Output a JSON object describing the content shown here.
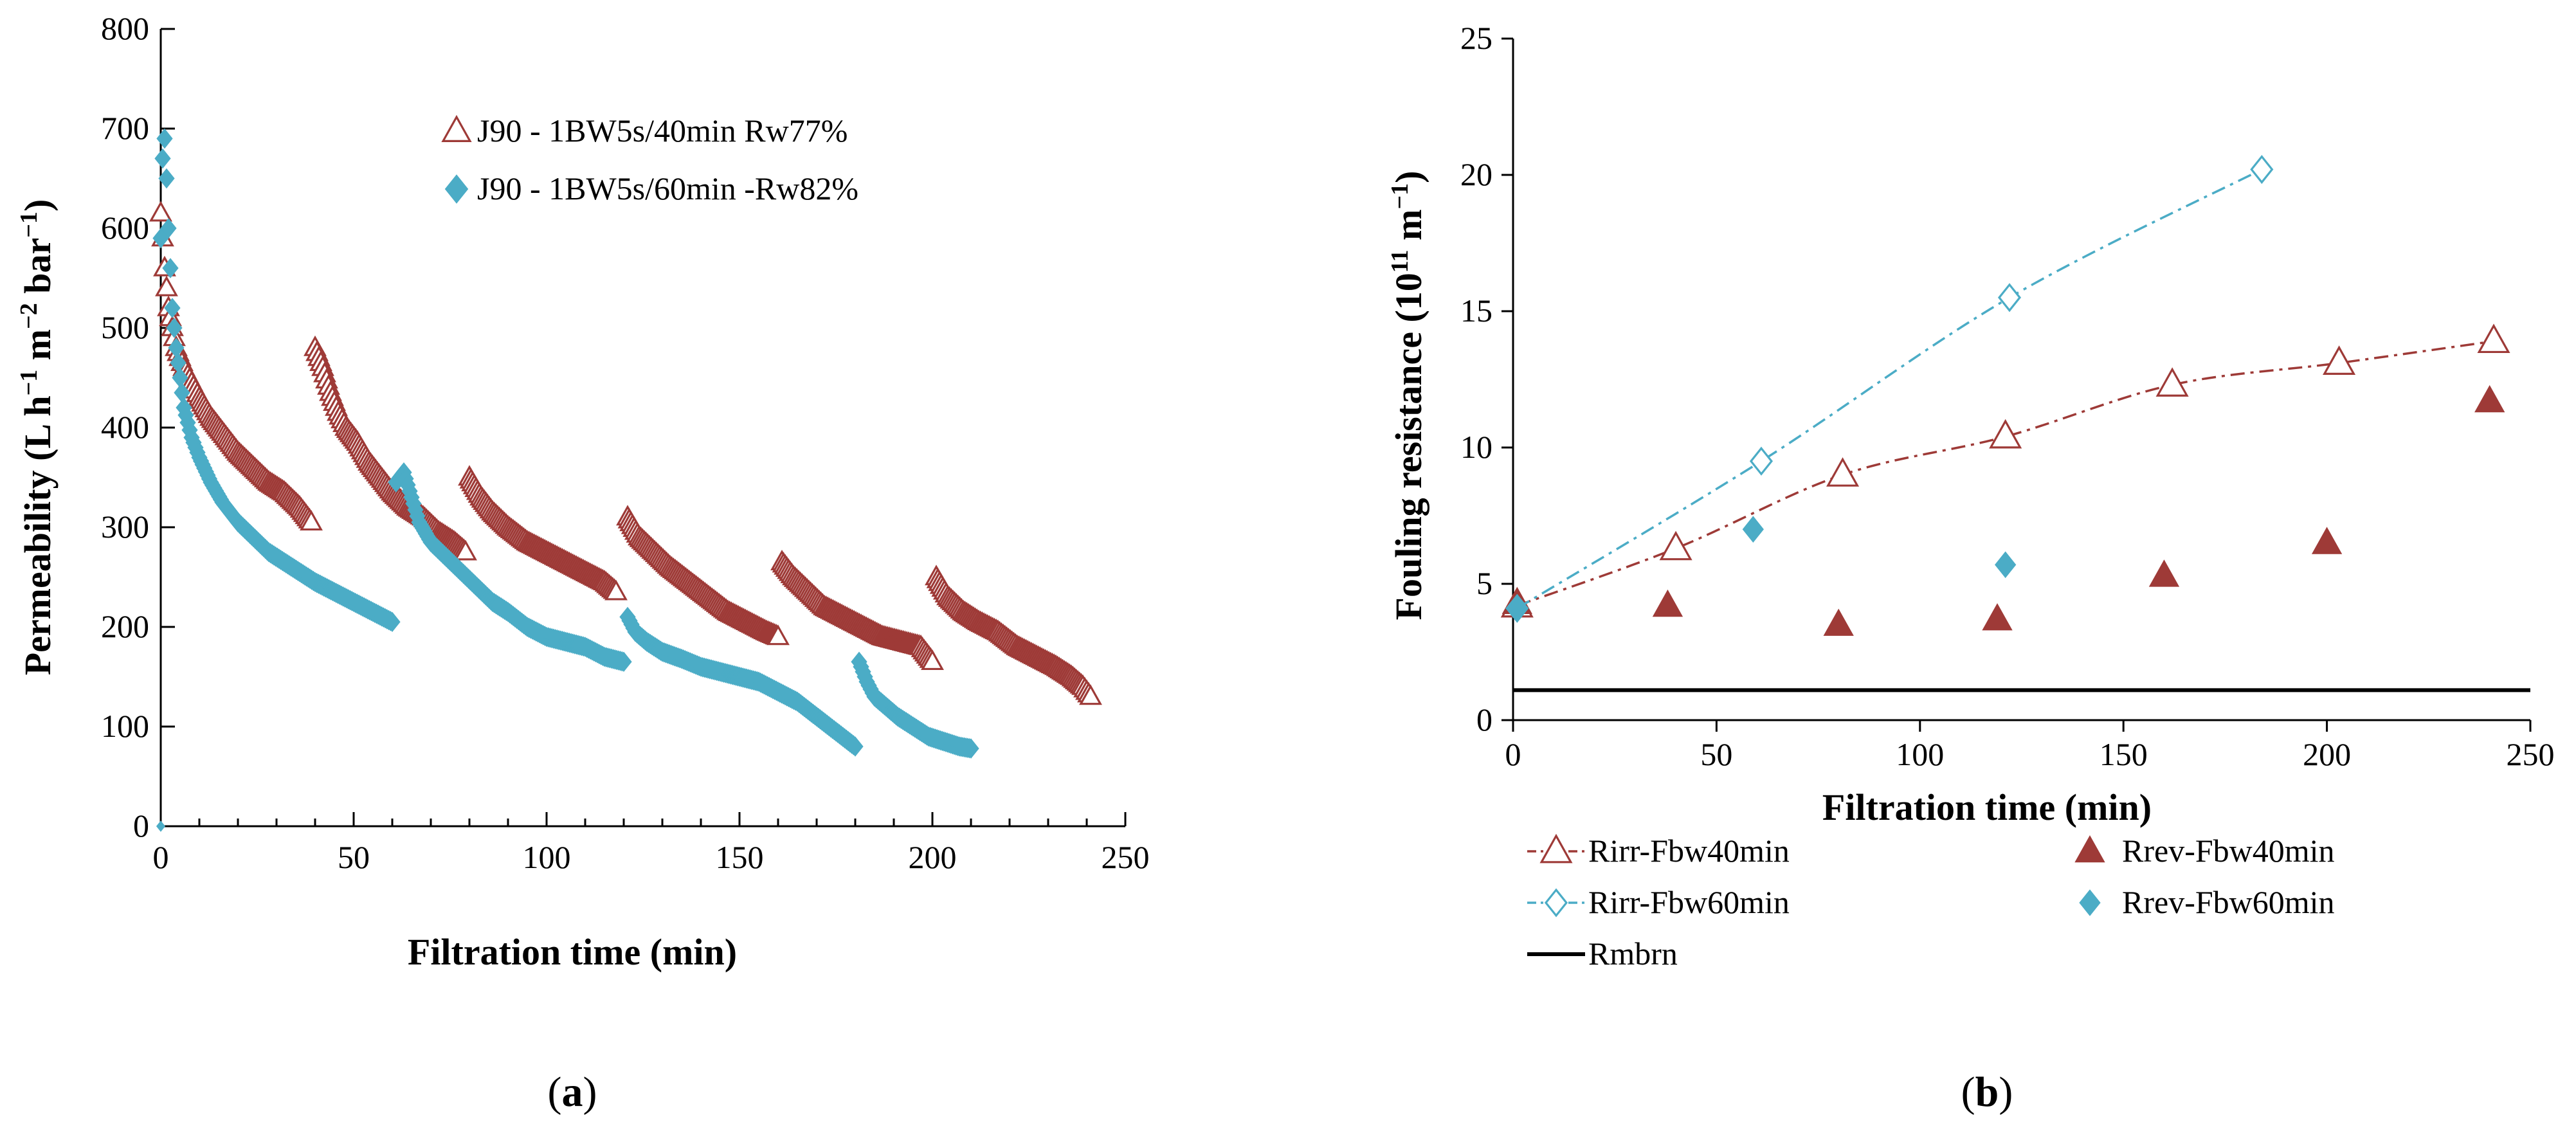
{
  "chart_data": [
    {
      "type": "scatter",
      "panel_label": "a",
      "xlabel": "Filtration time (min)",
      "ylabel_parts": [
        "Permeability (L h",
        "−1",
        " m",
        "−2",
        " bar",
        "−1",
        ")"
      ],
      "xlim": [
        0,
        250
      ],
      "ylim": [
        0,
        800
      ],
      "xticks": [
        "0",
        "50",
        "100",
        "150",
        "200",
        "250"
      ],
      "yticks": [
        "0",
        "100",
        "200",
        "300",
        "400",
        "500",
        "600",
        "700",
        "800"
      ],
      "legend_position": "top-right",
      "colors": {
        "series1": "#9e3a37",
        "series2": "#4bacc6"
      },
      "series": [
        {
          "name": "J90 - 1BW5s/40min Rw77%",
          "marker": "open-triangle",
          "segments": [
            {
              "t": [
                0,
                0.5,
                1,
                2,
                3,
                4,
                6,
                8,
                10,
                13,
                16,
                20,
                24,
                28,
                32,
                36,
                39
              ],
              "p": [
                615,
                590,
                560,
                520,
                500,
                480,
                460,
                445,
                430,
                410,
                395,
                375,
                360,
                345,
                335,
                320,
                305
              ]
            },
            {
              "t": [
                40,
                42,
                44,
                46,
                48,
                51,
                54,
                57,
                60,
                64,
                68,
                72,
                76,
                79
              ],
              "p": [
                480,
                460,
                435,
                415,
                400,
                385,
                365,
                350,
                335,
                320,
                310,
                295,
                285,
                275
              ]
            },
            {
              "t": [
                80,
                83,
                86,
                90,
                95,
                100,
                105,
                110,
                115,
                118
              ],
              "p": [
                350,
                330,
                315,
                300,
                285,
                275,
                265,
                255,
                245,
                235
              ]
            },
            {
              "t": [
                121,
                124,
                128,
                132,
                137,
                142,
                147,
                152,
                157,
                160
              ],
              "p": [
                310,
                290,
                275,
                260,
                245,
                230,
                215,
                205,
                195,
                190
              ]
            },
            {
              "t": [
                161,
                164,
                168,
                172,
                177,
                182,
                187,
                192,
                197,
                200
              ],
              "p": [
                265,
                250,
                235,
                220,
                210,
                200,
                190,
                185,
                180,
                165
              ]
            },
            {
              "t": [
                201,
                204,
                208,
                212,
                217,
                222,
                227,
                232,
                236,
                239,
                241
              ],
              "p": [
                250,
                230,
                215,
                205,
                195,
                180,
                170,
                160,
                150,
                140,
                130
              ]
            }
          ]
        },
        {
          "name": "J90 - 1BW5s/60min -Rw82%",
          "marker": "filled-diamond",
          "segments": [
            {
              "t": [
                0,
                0.5,
                1,
                1.5,
                2,
                3,
                4,
                5,
                6,
                8,
                10,
                13,
                16,
                20,
                24,
                28,
                32,
                36,
                40,
                45,
                50,
                55,
                60
              ],
              "p": [
                590,
                670,
                690,
                650,
                600,
                520,
                480,
                450,
                420,
                390,
                370,
                345,
                325,
                305,
                290,
                275,
                265,
                255,
                245,
                235,
                225,
                215,
                205
              ]
            },
            {
              "t": [
                61,
                63,
                65,
                67,
                70,
                74,
                78,
                82,
                86,
                90,
                95,
                100,
                105,
                110,
                115,
                120
              ],
              "p": [
                345,
                355,
                330,
                305,
                285,
                270,
                255,
                240,
                225,
                215,
                200,
                190,
                185,
                180,
                170,
                165
              ]
            },
            {
              "t": [
                121,
                123,
                126,
                130,
                135,
                140,
                145,
                150,
                155,
                160,
                165,
                170,
                175,
                180
              ],
              "p": [
                210,
                195,
                185,
                175,
                168,
                160,
                155,
                150,
                145,
                135,
                125,
                110,
                95,
                80
              ]
            },
            {
              "t": [
                181,
                183,
                185,
                188,
                191,
                195,
                199,
                203,
                207,
                210
              ],
              "p": [
                165,
                145,
                130,
                120,
                110,
                100,
                90,
                85,
                80,
                78
              ]
            }
          ]
        }
      ]
    },
    {
      "type": "line",
      "panel_label": "b",
      "xlabel": "Filtration time (min)",
      "ylabel_parts": [
        "Fouling resistance (10",
        "11",
        " m",
        "−1",
        ")"
      ],
      "xlim": [
        0,
        250
      ],
      "ylim": [
        0,
        25
      ],
      "xticks": [
        "0",
        "50",
        "100",
        "150",
        "200",
        "250"
      ],
      "yticks": [
        "0",
        "5",
        "10",
        "15",
        "20",
        "25"
      ],
      "legend_position": "bottom",
      "colors": {
        "series1": "#9e3a37",
        "series2": "#4bacc6",
        "series3": "#000000"
      },
      "series": [
        {
          "name": "Rirr-Fbw40min",
          "marker": "open-triangle",
          "line": "dash-dot",
          "x": [
            1,
            40,
            81,
            121,
            162,
            203,
            241
          ],
          "y": [
            4.2,
            6.3,
            9.0,
            10.4,
            12.3,
            13.1,
            13.9
          ]
        },
        {
          "name": "Rrev-Fbw40min",
          "marker": "filled-triangle",
          "line": "none",
          "x": [
            1,
            38,
            80,
            119,
            160,
            200,
            240
          ],
          "y": [
            4.3,
            4.2,
            3.5,
            3.7,
            5.3,
            6.5,
            11.7
          ]
        },
        {
          "name": "Rirr-Fbw60min",
          "marker": "open-diamond",
          "line": "dash-dot",
          "x": [
            1,
            61,
            122,
            184
          ],
          "y": [
            4.1,
            9.5,
            15.5,
            20.2
          ]
        },
        {
          "name": "Rrev-Fbw60min",
          "marker": "filled-diamond",
          "line": "none",
          "x": [
            1,
            59,
            121
          ],
          "y": [
            4.1,
            7.0,
            5.7
          ]
        },
        {
          "name": "Rmbrn",
          "marker": "none",
          "line": "solid",
          "x": [
            0,
            250
          ],
          "y": [
            1.1,
            1.1
          ]
        }
      ]
    }
  ]
}
